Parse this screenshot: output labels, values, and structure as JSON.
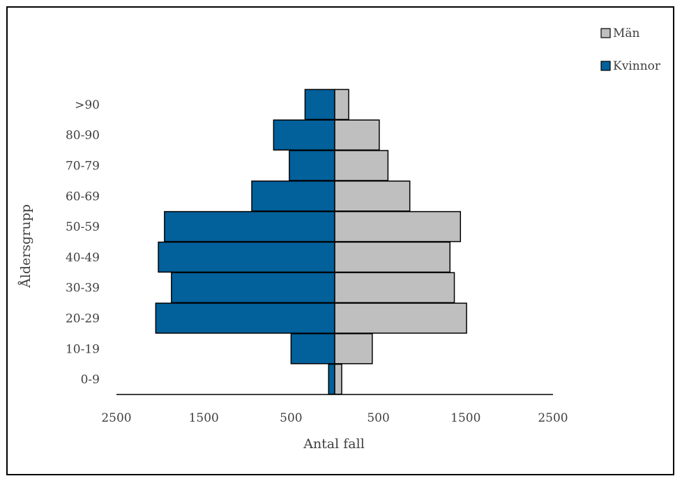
{
  "chart_data": {
    "type": "bar",
    "orientation": "horizontal",
    "variant": "population-pyramid",
    "categories": [
      "0-9",
      "10-19",
      "20-29",
      "30-39",
      "40-49",
      "50-59",
      "60-69",
      "70-79",
      "80-90",
      ">90"
    ],
    "series": [
      {
        "name": "Kvinnor",
        "side": "left",
        "color": "#02609b",
        "values": [
          70,
          500,
          2050,
          1870,
          2020,
          1950,
          950,
          520,
          700,
          340
        ]
      },
      {
        "name": "Män",
        "side": "right",
        "color": "#bfbfbf",
        "values": [
          80,
          430,
          1510,
          1370,
          1320,
          1440,
          860,
          610,
          510,
          160
        ]
      }
    ],
    "xlim": [
      -2500,
      2500
    ],
    "x_ticks": [
      -2500,
      -1500,
      -500,
      500,
      1500,
      2500
    ],
    "x_tick_labels": [
      "2500",
      "1500",
      "500",
      "500",
      "1500",
      "2500"
    ],
    "xlabel": "Antal fall",
    "ylabel": "Åldersgrupp",
    "grid": false,
    "legend_position": "top-right"
  }
}
